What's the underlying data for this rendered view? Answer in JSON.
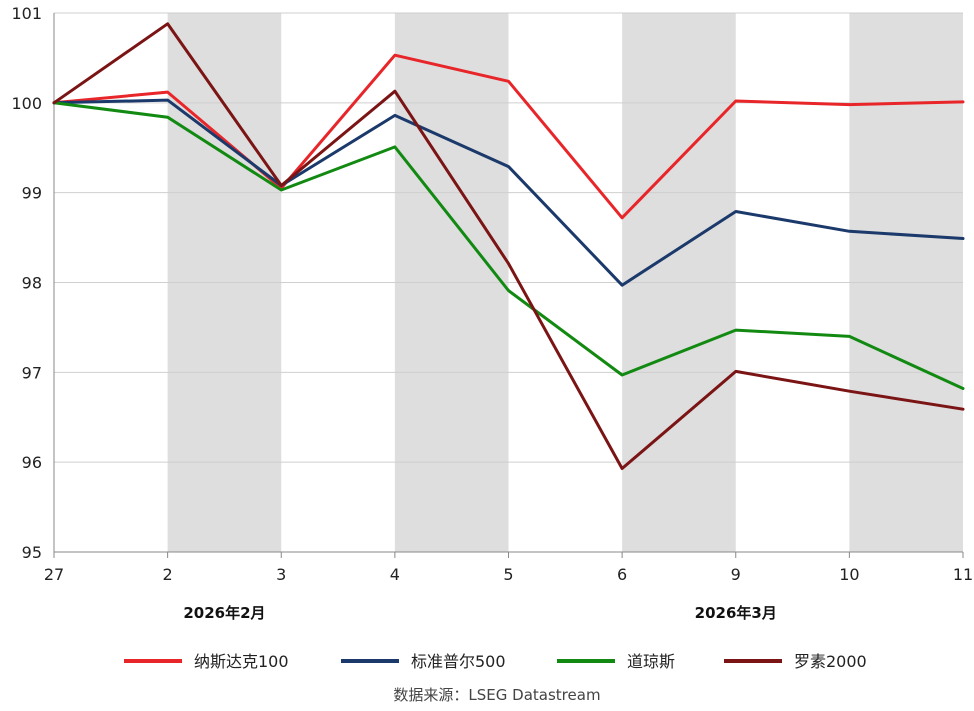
{
  "chart_data": {
    "type": "line",
    "categories": [
      "27",
      "2",
      "3",
      "4",
      "5",
      "6",
      "9",
      "10",
      "11"
    ],
    "month_labels": [
      {
        "text": "2026年2月",
        "from": 0,
        "to": 3
      },
      {
        "text": "2026年3月",
        "from": 3,
        "to": 9
      }
    ],
    "shaded_bands": [
      [
        1,
        2
      ],
      [
        3,
        4
      ],
      [
        5,
        6
      ],
      [
        7,
        8
      ]
    ],
    "ylim": [
      95,
      101
    ],
    "yticks": [
      95,
      96,
      97,
      98,
      99,
      100,
      101
    ],
    "grid": true,
    "legend_position": "bottom",
    "series": [
      {
        "name": "纳斯达克100",
        "color": "#e8262a",
        "values": [
          100.0,
          100.12,
          99.05,
          100.53,
          100.24,
          98.72,
          100.02,
          99.98,
          100.01
        ]
      },
      {
        "name": "标准普尔500",
        "color": "#1b3a6b",
        "values": [
          100.0,
          100.03,
          99.08,
          99.86,
          99.29,
          97.97,
          98.79,
          98.57,
          98.49
        ]
      },
      {
        "name": "道琼斯",
        "color": "#128a12",
        "values": [
          100.0,
          99.84,
          99.03,
          99.51,
          97.91,
          96.97,
          97.47,
          97.4,
          96.82
        ]
      },
      {
        "name": "罗素2000",
        "color": "#7b1414",
        "values": [
          100.0,
          100.88,
          99.08,
          100.13,
          98.21,
          95.93,
          97.01,
          96.79,
          96.59
        ]
      }
    ],
    "source": "数据来源：LSEG Datastream"
  }
}
